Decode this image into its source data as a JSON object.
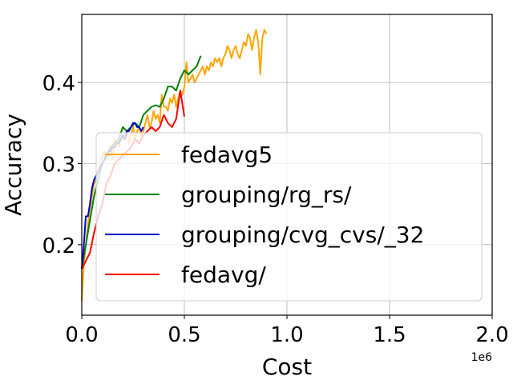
{
  "chart_data": {
    "type": "line",
    "title": "",
    "xlabel": "Cost",
    "ylabel": "Accuracy",
    "x_offset_label": "1e6",
    "xlim": [
      0,
      2.0
    ],
    "ylim": [
      0.113,
      0.484
    ],
    "xticks": [
      0,
      0.5,
      1.0,
      1.5,
      2.0
    ],
    "xtick_labels": [
      "0.0",
      "0.5",
      "1.0",
      "1.5",
      "2.0"
    ],
    "yticks": [
      0.2,
      0.3,
      0.4
    ],
    "ytick_labels": [
      "0.2",
      "0.3",
      "0.4"
    ],
    "grid": true,
    "legend_position": "lower-left",
    "series": [
      {
        "name": "fedavg5",
        "color": "#ffa500",
        "x": [
          0.0,
          0.01,
          0.02,
          0.03,
          0.04,
          0.05,
          0.06,
          0.07,
          0.08,
          0.09,
          0.1,
          0.11,
          0.12,
          0.13,
          0.14,
          0.15,
          0.16,
          0.17,
          0.18,
          0.19,
          0.2,
          0.21,
          0.22,
          0.23,
          0.24,
          0.25,
          0.26,
          0.27,
          0.28,
          0.29,
          0.3,
          0.31,
          0.32,
          0.33,
          0.34,
          0.35,
          0.36,
          0.37,
          0.38,
          0.39,
          0.4,
          0.41,
          0.42,
          0.43,
          0.44,
          0.45,
          0.46,
          0.47,
          0.48,
          0.49,
          0.5,
          0.51,
          0.52,
          0.53,
          0.54,
          0.55,
          0.56,
          0.57,
          0.58,
          0.59,
          0.6,
          0.61,
          0.62,
          0.63,
          0.64,
          0.65,
          0.66,
          0.67,
          0.68,
          0.69,
          0.7,
          0.71,
          0.72,
          0.73,
          0.74,
          0.75,
          0.76,
          0.77,
          0.78,
          0.79,
          0.8,
          0.81,
          0.82,
          0.83,
          0.84,
          0.85,
          0.86,
          0.87,
          0.88,
          0.89,
          0.9
        ],
        "y": [
          0.13,
          0.175,
          0.2,
          0.225,
          0.245,
          0.26,
          0.275,
          0.28,
          0.29,
          0.3,
          0.31,
          0.315,
          0.305,
          0.31,
          0.32,
          0.305,
          0.33,
          0.325,
          0.32,
          0.33,
          0.33,
          0.335,
          0.34,
          0.325,
          0.335,
          0.345,
          0.33,
          0.34,
          0.345,
          0.335,
          0.34,
          0.35,
          0.36,
          0.345,
          0.35,
          0.365,
          0.355,
          0.36,
          0.35,
          0.385,
          0.37,
          0.37,
          0.365,
          0.38,
          0.375,
          0.385,
          0.37,
          0.38,
          0.39,
          0.385,
          0.395,
          0.425,
          0.4,
          0.405,
          0.41,
          0.4,
          0.405,
          0.41,
          0.415,
          0.42,
          0.41,
          0.42,
          0.415,
          0.425,
          0.42,
          0.43,
          0.425,
          0.43,
          0.42,
          0.43,
          0.435,
          0.445,
          0.44,
          0.43,
          0.44,
          0.445,
          0.435,
          0.43,
          0.44,
          0.45,
          0.445,
          0.46,
          0.455,
          0.44,
          0.455,
          0.465,
          0.45,
          0.41,
          0.455,
          0.465,
          0.46
        ]
      },
      {
        "name": "grouping/rg_rs/",
        "color": "#008000",
        "x": [
          0.0,
          0.02,
          0.04,
          0.06,
          0.08,
          0.1,
          0.12,
          0.14,
          0.16,
          0.18,
          0.2,
          0.22,
          0.24,
          0.26,
          0.28,
          0.3,
          0.32,
          0.34,
          0.36,
          0.38,
          0.4,
          0.42,
          0.44,
          0.46,
          0.48,
          0.5,
          0.52,
          0.54,
          0.56,
          0.58
        ],
        "y": [
          0.17,
          0.2,
          0.23,
          0.26,
          0.28,
          0.3,
          0.31,
          0.32,
          0.325,
          0.33,
          0.345,
          0.34,
          0.345,
          0.35,
          0.345,
          0.36,
          0.365,
          0.37,
          0.372,
          0.37,
          0.38,
          0.395,
          0.395,
          0.39,
          0.405,
          0.415,
          0.41,
          0.415,
          0.42,
          0.433
        ]
      },
      {
        "name": "grouping/cvg_cvs/_32",
        "color": "#0000cd",
        "x": [
          0.0,
          0.01,
          0.02,
          0.03,
          0.04,
          0.05,
          0.06,
          0.07,
          0.08,
          0.09,
          0.1,
          0.11,
          0.12,
          0.13,
          0.14,
          0.15,
          0.16,
          0.17,
          0.18,
          0.19,
          0.2,
          0.21,
          0.22,
          0.23,
          0.24,
          0.25,
          0.26,
          0.27,
          0.28,
          0.29,
          0.3
        ],
        "y": [
          0.17,
          0.2,
          0.235,
          0.235,
          0.25,
          0.27,
          0.28,
          0.285,
          0.29,
          0.295,
          0.3,
          0.305,
          0.31,
          0.315,
          0.315,
          0.32,
          0.32,
          0.325,
          0.325,
          0.33,
          0.335,
          0.33,
          0.34,
          0.34,
          0.345,
          0.35,
          0.35,
          0.345,
          0.345,
          0.34,
          0.345
        ]
      },
      {
        "name": "fedavg/",
        "color": "#ff0000",
        "x": [
          0.0,
          0.02,
          0.04,
          0.06,
          0.08,
          0.1,
          0.12,
          0.14,
          0.16,
          0.18,
          0.2,
          0.22,
          0.24,
          0.26,
          0.28,
          0.3,
          0.32,
          0.34,
          0.36,
          0.38,
          0.4,
          0.42,
          0.44,
          0.46,
          0.48,
          0.5
        ],
        "y": [
          0.17,
          0.18,
          0.19,
          0.215,
          0.235,
          0.25,
          0.275,
          0.285,
          0.3,
          0.305,
          0.31,
          0.315,
          0.32,
          0.33,
          0.325,
          0.335,
          0.34,
          0.345,
          0.34,
          0.345,
          0.36,
          0.35,
          0.345,
          0.355,
          0.39,
          0.358
        ]
      }
    ]
  }
}
